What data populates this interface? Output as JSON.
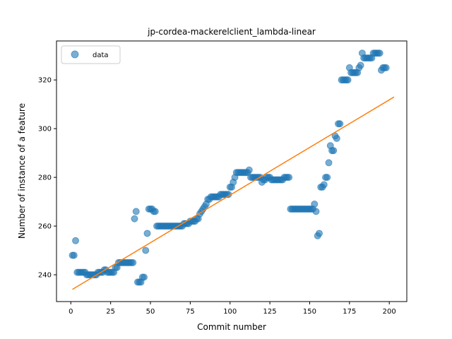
{
  "chart_data": {
    "type": "scatter",
    "title": "jp-cordea-mackerelclient_lambda-linear",
    "xlabel": "Commit number",
    "ylabel": "Number of instance of a feature",
    "xlim": [
      -9,
      211
    ],
    "ylim": [
      229,
      336
    ],
    "xticks": [
      0,
      25,
      50,
      75,
      100,
      125,
      150,
      175,
      200
    ],
    "yticks": [
      240,
      260,
      280,
      300,
      320
    ],
    "grid": false,
    "legend": {
      "placement": "top-left",
      "entries": [
        "data"
      ]
    },
    "colors": {
      "points": "#1f77b4",
      "fit_line": "#ff7f0e"
    },
    "series": [
      {
        "name": "data",
        "kind": "scatter",
        "points": [
          [
            1,
            248
          ],
          [
            2,
            248
          ],
          [
            3,
            254
          ],
          [
            4,
            241
          ],
          [
            5,
            241
          ],
          [
            6,
            241
          ],
          [
            7,
            241
          ],
          [
            8,
            241
          ],
          [
            9,
            241
          ],
          [
            10,
            240
          ],
          [
            11,
            240
          ],
          [
            12,
            240
          ],
          [
            13,
            240
          ],
          [
            14,
            240
          ],
          [
            15,
            240
          ],
          [
            16,
            240
          ],
          [
            17,
            241
          ],
          [
            18,
            241
          ],
          [
            19,
            241
          ],
          [
            20,
            241
          ],
          [
            21,
            242
          ],
          [
            22,
            242
          ],
          [
            23,
            241
          ],
          [
            24,
            241
          ],
          [
            25,
            241
          ],
          [
            26,
            241
          ],
          [
            27,
            241
          ],
          [
            28,
            243
          ],
          [
            29,
            243
          ],
          [
            30,
            245
          ],
          [
            31,
            245
          ],
          [
            32,
            245
          ],
          [
            33,
            245
          ],
          [
            34,
            245
          ],
          [
            35,
            245
          ],
          [
            36,
            245
          ],
          [
            37,
            245
          ],
          [
            38,
            245
          ],
          [
            39,
            245
          ],
          [
            40,
            263
          ],
          [
            41,
            266
          ],
          [
            42,
            237
          ],
          [
            43,
            237
          ],
          [
            44,
            237
          ],
          [
            45,
            239
          ],
          [
            46,
            239
          ],
          [
            47,
            250
          ],
          [
            48,
            257
          ],
          [
            49,
            267
          ],
          [
            50,
            267
          ],
          [
            51,
            267
          ],
          [
            52,
            266
          ],
          [
            53,
            266
          ],
          [
            54,
            260
          ],
          [
            55,
            260
          ],
          [
            56,
            260
          ],
          [
            57,
            260
          ],
          [
            58,
            260
          ],
          [
            59,
            260
          ],
          [
            60,
            260
          ],
          [
            61,
            260
          ],
          [
            62,
            260
          ],
          [
            63,
            260
          ],
          [
            64,
            260
          ],
          [
            65,
            260
          ],
          [
            66,
            260
          ],
          [
            67,
            260
          ],
          [
            68,
            260
          ],
          [
            69,
            260
          ],
          [
            70,
            260
          ],
          [
            71,
            261
          ],
          [
            72,
            261
          ],
          [
            73,
            261
          ],
          [
            74,
            261
          ],
          [
            75,
            262
          ],
          [
            76,
            262
          ],
          [
            77,
            262
          ],
          [
            78,
            262
          ],
          [
            79,
            263
          ],
          [
            80,
            263
          ],
          [
            81,
            265
          ],
          [
            82,
            266
          ],
          [
            83,
            267
          ],
          [
            84,
            268
          ],
          [
            85,
            269
          ],
          [
            86,
            271
          ],
          [
            87,
            271
          ],
          [
            88,
            272
          ],
          [
            89,
            272
          ],
          [
            90,
            272
          ],
          [
            91,
            272
          ],
          [
            92,
            272
          ],
          [
            93,
            272
          ],
          [
            94,
            273
          ],
          [
            95,
            273
          ],
          [
            96,
            273
          ],
          [
            97,
            273
          ],
          [
            98,
            273
          ],
          [
            99,
            273
          ],
          [
            100,
            276
          ],
          [
            101,
            276
          ],
          [
            102,
            278
          ],
          [
            103,
            280
          ],
          [
            104,
            282
          ],
          [
            105,
            282
          ],
          [
            106,
            282
          ],
          [
            107,
            282
          ],
          [
            108,
            282
          ],
          [
            109,
            282
          ],
          [
            110,
            282
          ],
          [
            111,
            282
          ],
          [
            112,
            283
          ],
          [
            113,
            280
          ],
          [
            114,
            280
          ],
          [
            115,
            280
          ],
          [
            116,
            280
          ],
          [
            117,
            280
          ],
          [
            118,
            280
          ],
          [
            119,
            280
          ],
          [
            120,
            278
          ],
          [
            121,
            279
          ],
          [
            122,
            279
          ],
          [
            123,
            280
          ],
          [
            124,
            280
          ],
          [
            125,
            280
          ],
          [
            126,
            279
          ],
          [
            127,
            279
          ],
          [
            128,
            279
          ],
          [
            129,
            279
          ],
          [
            130,
            279
          ],
          [
            131,
            279
          ],
          [
            132,
            279
          ],
          [
            133,
            279
          ],
          [
            134,
            280
          ],
          [
            135,
            280
          ],
          [
            136,
            280
          ],
          [
            137,
            280
          ],
          [
            138,
            267
          ],
          [
            139,
            267
          ],
          [
            140,
            267
          ],
          [
            141,
            267
          ],
          [
            142,
            267
          ],
          [
            143,
            267
          ],
          [
            144,
            267
          ],
          [
            145,
            267
          ],
          [
            146,
            267
          ],
          [
            147,
            267
          ],
          [
            148,
            267
          ],
          [
            149,
            267
          ],
          [
            150,
            267
          ],
          [
            151,
            267
          ],
          [
            152,
            267
          ],
          [
            153,
            269
          ],
          [
            154,
            266
          ],
          [
            155,
            256
          ],
          [
            156,
            257
          ],
          [
            157,
            276
          ],
          [
            158,
            276
          ],
          [
            159,
            277
          ],
          [
            160,
            280
          ],
          [
            161,
            280
          ],
          [
            162,
            286
          ],
          [
            163,
            293
          ],
          [
            164,
            291
          ],
          [
            165,
            291
          ],
          [
            166,
            297
          ],
          [
            167,
            296
          ],
          [
            168,
            302
          ],
          [
            169,
            302
          ],
          [
            170,
            320
          ],
          [
            171,
            320
          ],
          [
            172,
            320
          ],
          [
            173,
            320
          ],
          [
            174,
            320
          ],
          [
            175,
            325
          ],
          [
            176,
            323
          ],
          [
            177,
            323
          ],
          [
            178,
            323
          ],
          [
            179,
            323
          ],
          [
            180,
            323
          ],
          [
            181,
            325
          ],
          [
            182,
            326
          ],
          [
            183,
            331
          ],
          [
            184,
            329
          ],
          [
            185,
            329
          ],
          [
            186,
            329
          ],
          [
            187,
            329
          ],
          [
            188,
            329
          ],
          [
            189,
            329
          ],
          [
            190,
            331
          ],
          [
            191,
            331
          ],
          [
            192,
            331
          ],
          [
            193,
            331
          ],
          [
            194,
            331
          ],
          [
            195,
            324
          ],
          [
            196,
            325
          ],
          [
            197,
            325
          ],
          [
            198,
            325
          ]
        ]
      },
      {
        "name": "",
        "kind": "line",
        "points": [
          [
            1,
            234
          ],
          [
            203,
            313
          ]
        ]
      }
    ]
  }
}
